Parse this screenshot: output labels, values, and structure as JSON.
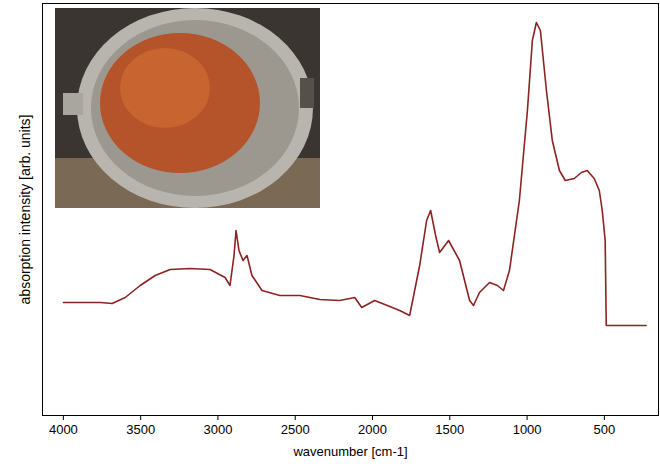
{
  "chart_data": {
    "type": "line",
    "x_label": "wavenumber [cm-1]",
    "y_label": "absorption intensity [arb. units]",
    "color": "#8b2323",
    "x": [
      4000,
      3761,
      3684,
      3600,
      3503,
      3406,
      3309,
      3180,
      3051,
      2954,
      2922,
      2896,
      2883,
      2864,
      2838,
      2812,
      2780,
      2715,
      2599,
      2470,
      2341,
      2212,
      2115,
      2070,
      1986,
      1921,
      1824,
      1760,
      1695,
      1650,
      1624,
      1592,
      1566,
      1508,
      1437,
      1372,
      1347,
      1308,
      1243,
      1192,
      1153,
      1114,
      1050,
      998,
      966,
      940,
      914,
      875,
      837,
      791,
      753,
      695,
      649,
      611,
      566,
      533,
      514,
      495,
      488,
      230
    ],
    "values": [
      113,
      113,
      112,
      118,
      130,
      140,
      146,
      147,
      146,
      138,
      130,
      160,
      185,
      165,
      155,
      160,
      140,
      125,
      120,
      120,
      116,
      115,
      118,
      108,
      115,
      111,
      105,
      100,
      150,
      195,
      205,
      180,
      163,
      175,
      155,
      115,
      110,
      123,
      133,
      130,
      125,
      145,
      215,
      305,
      375,
      393,
      385,
      325,
      275,
      245,
      235,
      237,
      243,
      245,
      237,
      225,
      205,
      175,
      90,
      90
    ],
    "xlim": [
      4135,
      150
    ],
    "xticks": [
      4000,
      3500,
      3000,
      2500,
      2000,
      1500,
      1000,
      500
    ],
    "ylim": [
      0,
      412
    ],
    "yticks": [],
    "tick_labels": "x",
    "grid": false
  }
}
